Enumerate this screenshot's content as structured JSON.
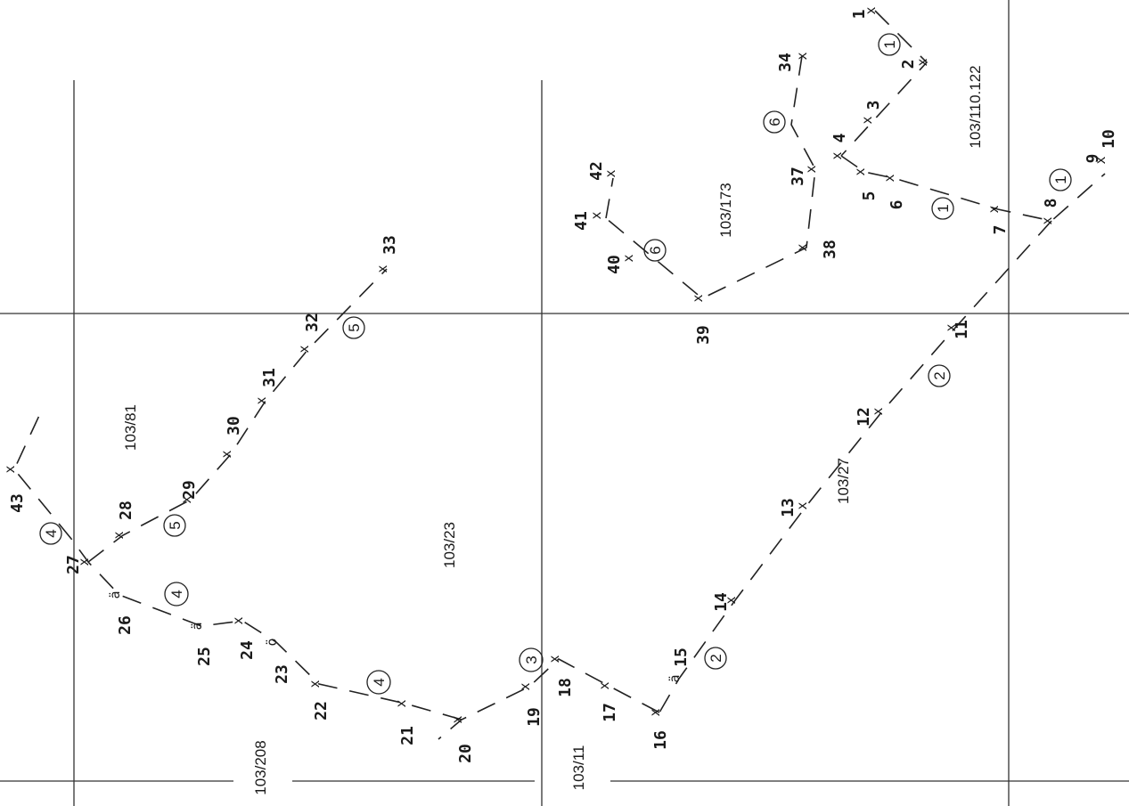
{
  "parcels": [
    "103/110.122",
    "103/173",
    "103/81",
    "103/23",
    "103/27",
    "103/208",
    "103/11"
  ],
  "points": [
    "1",
    "2",
    "3",
    "4",
    "5",
    "6",
    "7",
    "8",
    "9",
    "10",
    "11",
    "12",
    "13",
    "14",
    "15",
    "16",
    "17",
    "18",
    "19",
    "20",
    "21",
    "22",
    "23",
    "24",
    "25",
    "26",
    "27",
    "28",
    "29",
    "30",
    "31",
    "32",
    "33",
    "34",
    "37",
    "38",
    "39",
    "40",
    "41",
    "42",
    "43"
  ],
  "segments": [
    "1",
    "1",
    "1",
    "2",
    "2",
    "2",
    "3",
    "4",
    "4",
    "4",
    "5",
    "5",
    "6",
    "6"
  ]
}
